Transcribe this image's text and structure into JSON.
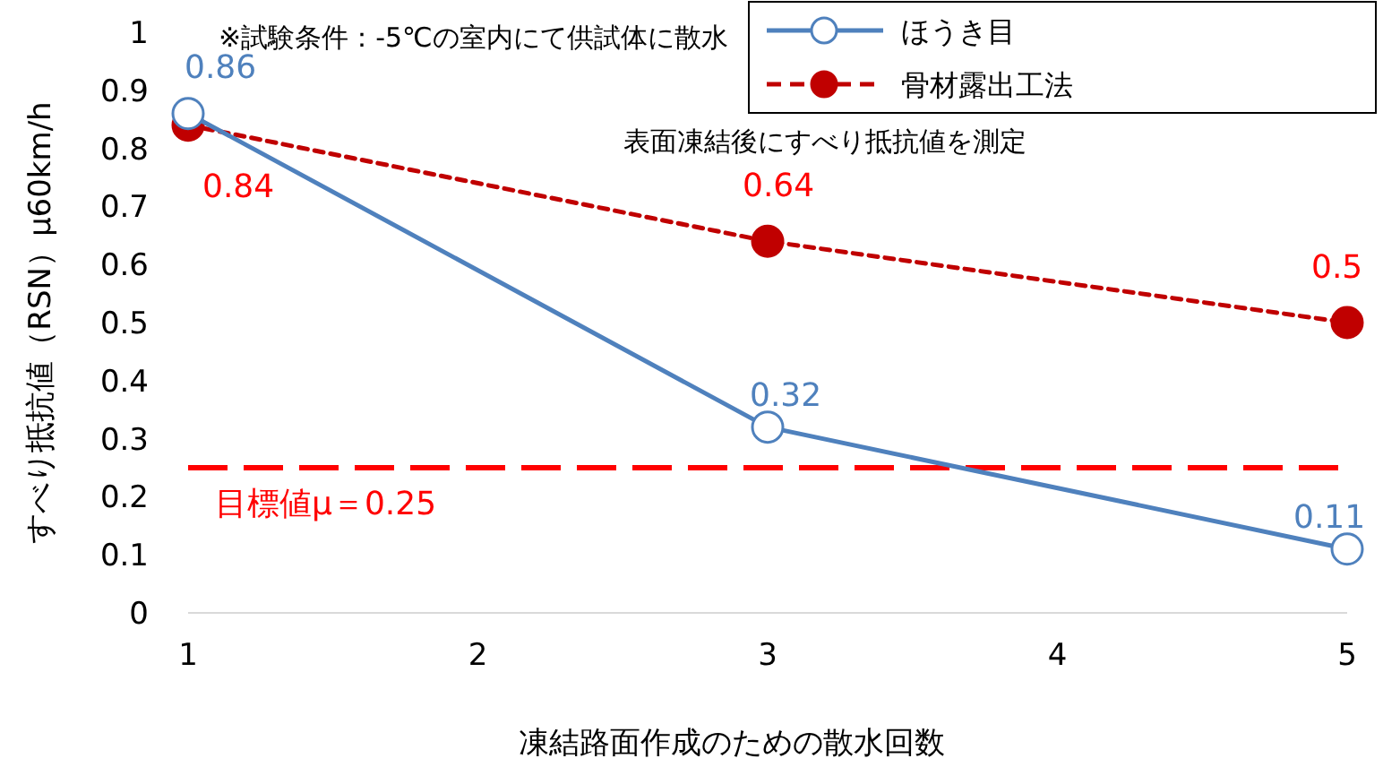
{
  "chart_data": {
    "type": "line",
    "xlabel": "凍結路面作成のための散水回数",
    "ylabel": "すべり抵抗値（RSN）μ60km/h",
    "x": [
      1,
      3,
      5
    ],
    "xlim": [
      1,
      5
    ],
    "xticks": [
      1,
      2,
      3,
      4,
      5
    ],
    "ylim": [
      0,
      1
    ],
    "yticks": [
      0,
      0.1,
      0.2,
      0.3,
      0.4,
      0.5,
      0.6,
      0.7,
      0.8,
      0.9,
      1
    ],
    "series": [
      {
        "name": "ほうき目",
        "color": "#4f81bd",
        "values": [
          0.86,
          0.32,
          0.11
        ],
        "line_style": "solid",
        "marker": "circle"
      },
      {
        "name": "骨材露出工法",
        "color": "#c00000",
        "values": [
          0.84,
          0.64,
          0.5
        ],
        "line_style": "dotted",
        "marker": "circle"
      }
    ],
    "data_labels": true,
    "legend": "top right",
    "ref_lines": [
      {
        "axis": "y",
        "value": 0.25,
        "label": "目標値μ＝0.25",
        "color": "#ff0000",
        "line_style": "dashed"
      }
    ],
    "annotations": [
      "※試験条件：-5℃の室内にて供試体に散水",
      "表面凍結後にすべり抵抗値を測定"
    ]
  }
}
